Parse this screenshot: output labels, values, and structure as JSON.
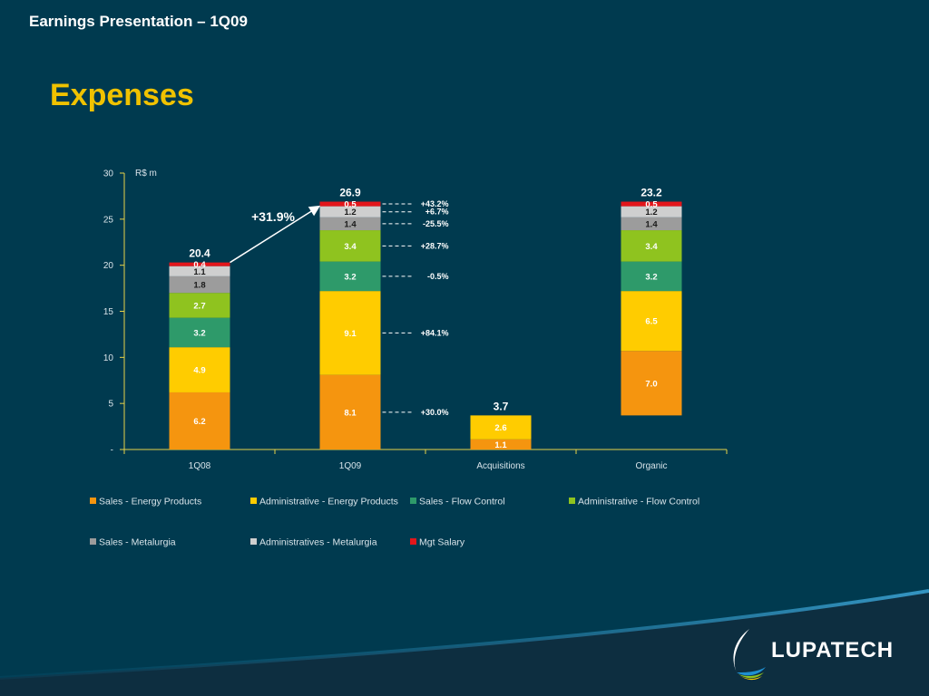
{
  "header": {
    "title": "Earnings Presentation – 1Q09"
  },
  "slide": {
    "title": "Expenses"
  },
  "brand": {
    "name": "LUPATECH"
  },
  "colors": {
    "background": "#003a4f",
    "axis": "#e8d24a",
    "Sales - Energy Products": "#f5950f",
    "Administrative - Energy Products": "#ffcc00",
    "Sales - Flow Control": "#2e9a6a",
    "Administrative - Flow Control": "#8fc31f",
    "Sales - Metalurgia": "#9c9c9c",
    "Administratives - Metalurgia": "#cfcfcf",
    "Mgt Salary": "#e3161b"
  },
  "chart_data": {
    "type": "bar",
    "stacked": true,
    "ylabel": "R$ m",
    "ylim": [
      0,
      30
    ],
    "yticks": [
      0,
      5,
      10,
      15,
      20,
      25,
      30
    ],
    "ytick_labels": [
      "-",
      "5",
      "10",
      "15",
      "20",
      "25",
      "30"
    ],
    "categories": [
      "1Q08",
      "1Q09",
      "Acquisitions",
      "Organic"
    ],
    "bases": [
      0,
      0,
      0,
      3.7
    ],
    "totals": [
      "20.4",
      "26.9",
      "3.7",
      "23.2"
    ],
    "series": [
      {
        "name": "Sales - Energy Products",
        "values": [
          6.2,
          8.1,
          1.1,
          7.0
        ],
        "labels": [
          "6.2",
          "8.1",
          "1.1",
          "7.0"
        ]
      },
      {
        "name": "Administrative - Energy Products",
        "values": [
          4.9,
          9.1,
          2.6,
          6.5
        ],
        "labels": [
          "4.9",
          "9.1",
          "2.6",
          "6.5"
        ]
      },
      {
        "name": "Sales - Flow Control",
        "values": [
          3.2,
          3.2,
          0,
          3.2
        ],
        "labels": [
          "3.2",
          "3.2",
          "",
          "3.2"
        ]
      },
      {
        "name": "Administrative - Flow Control",
        "values": [
          2.7,
          3.4,
          0,
          3.4
        ],
        "labels": [
          "2.7",
          "3.4",
          "",
          "3.4"
        ]
      },
      {
        "name": "Sales - Metalurgia",
        "values": [
          1.8,
          1.4,
          0,
          1.4
        ],
        "labels": [
          "1.8",
          "1.4",
          "",
          "1.4"
        ]
      },
      {
        "name": "Administratives - Metalurgia",
        "values": [
          1.1,
          1.2,
          0,
          1.2
        ],
        "labels": [
          "1.1",
          "1.2",
          "",
          "1.2"
        ]
      },
      {
        "name": "Mgt Salary",
        "values": [
          0.4,
          0.5,
          0,
          0.5
        ],
        "labels": [
          "0.4",
          "0.5",
          "",
          "0.5"
        ]
      }
    ],
    "changes": [
      {
        "series": "Sales - Energy Products",
        "label": "+30.0%"
      },
      {
        "series": "Administrative - Energy Products",
        "label": "+84.1%"
      },
      {
        "series": "Sales - Flow Control",
        "label": "-0.5%"
      },
      {
        "series": "Administrative - Flow Control",
        "label": "+28.7%"
      },
      {
        "series": "Sales - Metalurgia",
        "label": "-25.5%"
      },
      {
        "series": "Administratives - Metalurgia",
        "label": "+6.7%"
      },
      {
        "series": "Mgt Salary",
        "label": "+43.2%"
      }
    ],
    "growth_annotation": "+31.9%",
    "legend_position": "bottom"
  }
}
